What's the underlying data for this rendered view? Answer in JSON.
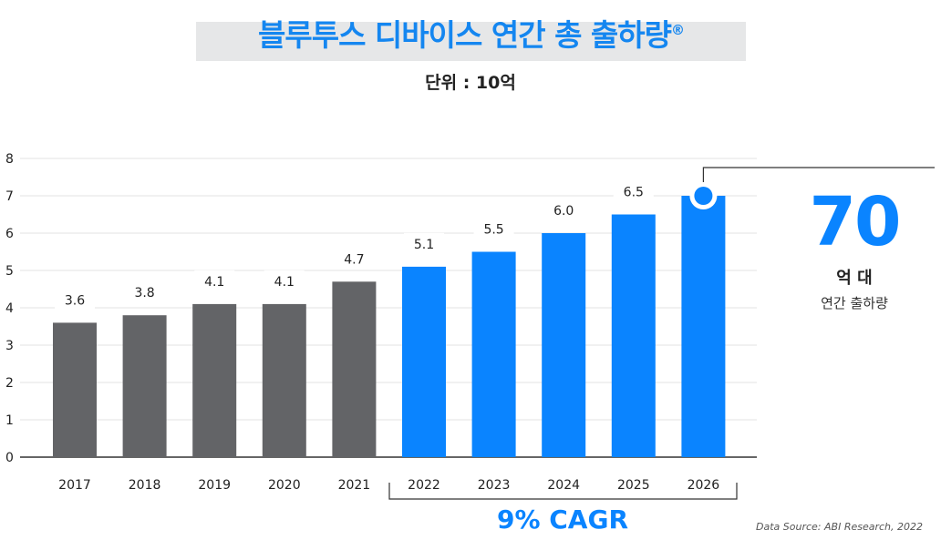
{
  "title": "블루투스 디바이스 연간 총 출하량",
  "title_mark": "®",
  "unit_label": "단위 : 10억",
  "highlight": {
    "value": "70",
    "unit": "억 대",
    "caption": "연간 출하량"
  },
  "cagr_label": "9% CAGR",
  "source": "Data Source: ABI Research, 2022",
  "colors": {
    "historic": "#636467",
    "forecast": "#0a84ff",
    "title": "#1486f0",
    "grid": "#e3e3e3"
  },
  "chart_data": {
    "type": "bar",
    "categories": [
      "2017",
      "2018",
      "2019",
      "2020",
      "2021",
      "2022",
      "2023",
      "2024",
      "2025",
      "2026"
    ],
    "values": [
      3.6,
      3.8,
      4.1,
      4.1,
      4.7,
      5.1,
      5.5,
      6.0,
      6.5,
      7.0
    ],
    "data_labels": [
      "3.6",
      "3.8",
      "4.1",
      "4.1",
      "4.7",
      "5.1",
      "5.5",
      "6.0",
      "6.5",
      ""
    ],
    "forecast_from_index": 5,
    "ylim": [
      0,
      8
    ],
    "yticks": [
      "0",
      "1",
      "2",
      "3",
      "4",
      "5",
      "6",
      "7",
      "8"
    ],
    "grid": true
  }
}
